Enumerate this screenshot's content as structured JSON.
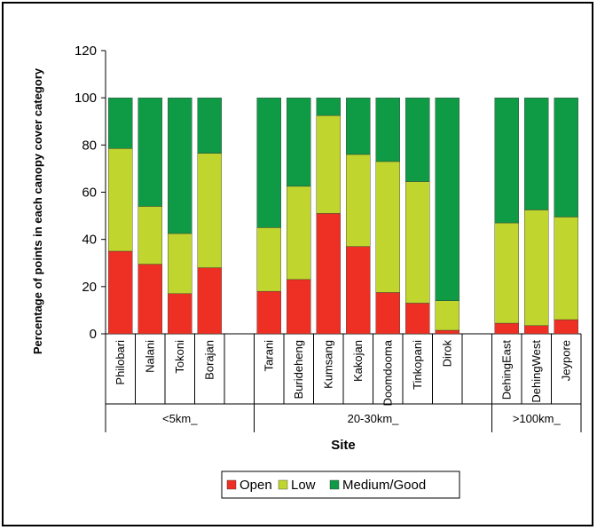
{
  "chart_data": {
    "type": "bar",
    "stacked": true,
    "title": "",
    "xlabel": "Site",
    "ylabel": "Percentage of points in each canopy cover category",
    "ylim": [
      0,
      120
    ],
    "yticks": [
      "0",
      "20",
      "40",
      "60",
      "80",
      "100",
      "120"
    ],
    "grid": false,
    "legend_position": "bottom",
    "categories": [
      "Philobari",
      "Nalani",
      "Tokoni",
      "Borajan",
      "",
      "Tarani",
      "Burideheng",
      "Kumsang",
      "Kakojan",
      "Doomdooma",
      "Tinkopani",
      "Dirok",
      "",
      "DehingEast",
      "DehingWest",
      "Jeypore"
    ],
    "groups": [
      {
        "label": "<5km_",
        "span": 5
      },
      {
        "label": "20-30km_",
        "span": 8
      },
      {
        "label": ">100km_",
        "span": 3
      }
    ],
    "series": [
      {
        "name": "Open",
        "color": "#ee3024",
        "values": [
          35,
          29.5,
          17,
          28,
          0,
          18,
          23,
          51,
          37,
          17.5,
          13,
          1.5,
          0,
          4.5,
          3.5,
          6
        ]
      },
      {
        "name": "Low",
        "color": "#c0d62e",
        "values": [
          43.5,
          24.5,
          25.5,
          48.5,
          0,
          27,
          39.5,
          41.5,
          39,
          55.5,
          51.5,
          12.5,
          0,
          42.5,
          49,
          43.5
        ]
      },
      {
        "name": "Medium/Good",
        "color": "#0f9a45",
        "values": [
          21.5,
          46,
          57.5,
          23.5,
          0,
          55,
          37.5,
          7.5,
          24,
          27,
          35.5,
          86,
          0,
          53,
          47.5,
          50.5
        ]
      }
    ]
  }
}
